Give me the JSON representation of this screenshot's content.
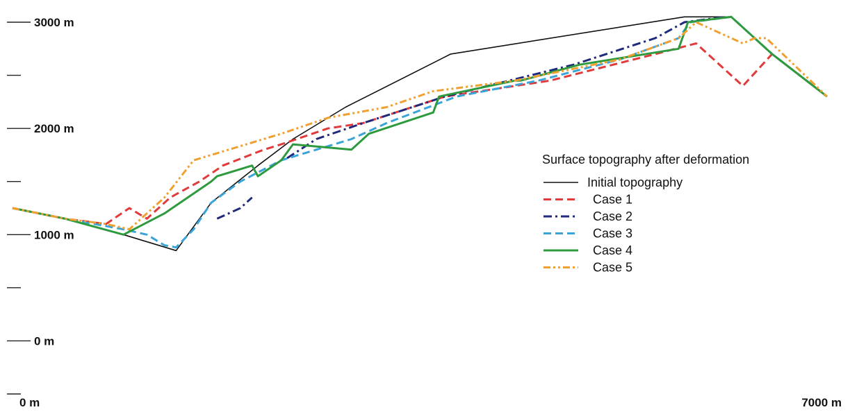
{
  "chart_data": {
    "type": "line",
    "title": "",
    "xlabel": "",
    "ylabel": "",
    "xlim": [
      0,
      7000
    ],
    "ylim": [
      -500,
      3000
    ],
    "grid": false,
    "legend_position": "right",
    "legend_title": "Surface topography after deformation",
    "y_ticks": [
      {
        "value": 3000,
        "label": "3000 m"
      },
      {
        "value": 2500,
        "label": ""
      },
      {
        "value": 2000,
        "label": "2000 m"
      },
      {
        "value": 1500,
        "label": ""
      },
      {
        "value": 1000,
        "label": "1000 m"
      },
      {
        "value": 500,
        "label": ""
      },
      {
        "value": 0,
        "label": "0 m"
      },
      {
        "value": -500,
        "label": ""
      }
    ],
    "x_ticks": [
      {
        "value": 0,
        "label": "0 m"
      },
      {
        "value": 7000,
        "label": "7000 m"
      }
    ],
    "series": [
      {
        "name": "Initial topography",
        "color": "#111111",
        "dash": "solid",
        "points": [
          [
            0,
            1250
          ],
          [
            450,
            1150
          ],
          [
            950,
            1000
          ],
          [
            1400,
            850
          ],
          [
            1700,
            1300
          ],
          [
            2100,
            1650
          ],
          [
            2400,
            1900
          ],
          [
            2850,
            2200
          ],
          [
            3750,
            2700
          ],
          [
            5750,
            3050
          ],
          [
            6150,
            3050
          ],
          [
            6500,
            2700
          ],
          [
            6970,
            2300
          ]
        ]
      },
      {
        "name": "Case 1",
        "color": "#e03a3a",
        "dash": "dash",
        "points": [
          [
            0,
            1250
          ],
          [
            450,
            1150
          ],
          [
            800,
            1100
          ],
          [
            1000,
            1250
          ],
          [
            1150,
            1150
          ],
          [
            1350,
            1350
          ],
          [
            1600,
            1500
          ],
          [
            1800,
            1650
          ],
          [
            2150,
            1800
          ],
          [
            2300,
            1850
          ],
          [
            2700,
            2000
          ],
          [
            3000,
            2050
          ],
          [
            3700,
            2300
          ],
          [
            4600,
            2450
          ],
          [
            5500,
            2700
          ],
          [
            5850,
            2800
          ],
          [
            6250,
            2400
          ],
          [
            6500,
            2700
          ],
          [
            6970,
            2300
          ]
        ]
      },
      {
        "name": "Case 2",
        "color": "#1f2a7a",
        "dash": "dashdot",
        "segments": [
          [
            [
              1750,
              1150
            ],
            [
              1950,
              1250
            ],
            [
              2050,
              1350
            ]
          ],
          [
            [
              2350,
              1720
            ],
            [
              2600,
              1900
            ],
            [
              3000,
              2050
            ],
            [
              3700,
              2300
            ],
            [
              4800,
              2600
            ],
            [
              5500,
              2850
            ],
            [
              5750,
              3000
            ],
            [
              6100,
              3050
            ]
          ]
        ]
      },
      {
        "name": "Case 3",
        "color": "#3aa3d8",
        "dash": "dash",
        "points": [
          [
            0,
            1250
          ],
          [
            450,
            1150
          ],
          [
            950,
            1050
          ],
          [
            1150,
            1000
          ],
          [
            1300,
            900
          ],
          [
            1400,
            880
          ],
          [
            1550,
            1050
          ],
          [
            1700,
            1300
          ],
          [
            1950,
            1500
          ],
          [
            2300,
            1700
          ],
          [
            2900,
            1900
          ],
          [
            3200,
            2050
          ],
          [
            3800,
            2300
          ],
          [
            4500,
            2450
          ],
          [
            5200,
            2650
          ],
          [
            5700,
            2850
          ],
          [
            5800,
            3000
          ],
          [
            6150,
            3050
          ],
          [
            6500,
            2700
          ],
          [
            6970,
            2300
          ]
        ]
      },
      {
        "name": "Case 4",
        "color": "#2e9a3e",
        "dash": "solid",
        "points": [
          [
            0,
            1250
          ],
          [
            450,
            1150
          ],
          [
            950,
            1000
          ],
          [
            1300,
            1200
          ],
          [
            1700,
            1500
          ],
          [
            1750,
            1550
          ],
          [
            1900,
            1600
          ],
          [
            2050,
            1650
          ],
          [
            2100,
            1550
          ],
          [
            2300,
            1700
          ],
          [
            2400,
            1850
          ],
          [
            2900,
            1800
          ],
          [
            2950,
            1850
          ],
          [
            3050,
            1950
          ],
          [
            3600,
            2150
          ],
          [
            3650,
            2300
          ],
          [
            4300,
            2450
          ],
          [
            4350,
            2450
          ],
          [
            4850,
            2600
          ],
          [
            5700,
            2750
          ],
          [
            5780,
            3000
          ],
          [
            6150,
            3050
          ],
          [
            6500,
            2700
          ],
          [
            6970,
            2300
          ]
        ]
      },
      {
        "name": "Case 5",
        "color": "#f0a030",
        "dash": "dashdotdot",
        "points": [
          [
            0,
            1250
          ],
          [
            450,
            1150
          ],
          [
            800,
            1100
          ],
          [
            1000,
            1050
          ],
          [
            1300,
            1350
          ],
          [
            1550,
            1700
          ],
          [
            1850,
            1800
          ],
          [
            2300,
            1950
          ],
          [
            2700,
            2100
          ],
          [
            3200,
            2200
          ],
          [
            3600,
            2350
          ],
          [
            4300,
            2450
          ],
          [
            5200,
            2650
          ],
          [
            5700,
            2850
          ],
          [
            5850,
            3000
          ],
          [
            6250,
            2800
          ],
          [
            6350,
            2850
          ],
          [
            6450,
            2850
          ],
          [
            6970,
            2300
          ]
        ]
      }
    ]
  }
}
